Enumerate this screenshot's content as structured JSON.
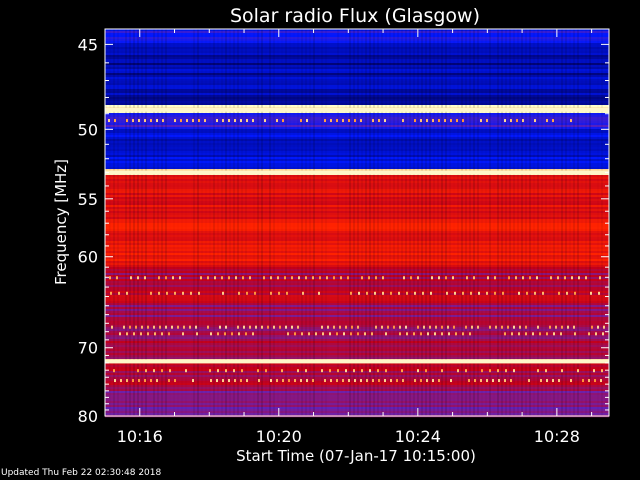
{
  "chart_data": {
    "type": "heatmap",
    "title": "Solar radio Flux (Glasgow)",
    "xlabel": "Start Time (07-Jan-17 10:15:00)",
    "ylabel": "Frequency [MHz]",
    "x_ticks": [
      "10:16",
      "10:20",
      "10:24",
      "10:28"
    ],
    "x_tick_minutes": [
      1,
      5,
      9,
      13
    ],
    "x_range_minutes": [
      0,
      14.5
    ],
    "y_ticks": [
      45,
      50,
      55,
      60,
      70,
      80
    ],
    "y_range": [
      44.2,
      80
    ],
    "y_scale": "reciprocal",
    "colormap": [
      "#000060",
      "#0018ff",
      "#6b22b0",
      "#c4001b",
      "#ff2200",
      "#ff9940",
      "#ffffcc"
    ],
    "bands": [
      {
        "from": 44.2,
        "to": 44.9,
        "level": 0.2
      },
      {
        "from": 44.9,
        "to": 48.5,
        "level": 0.08
      },
      {
        "from": 48.5,
        "to": 49.0,
        "level": 0.95
      },
      {
        "from": 49.0,
        "to": 50.0,
        "level": 0.25
      },
      {
        "from": 50.0,
        "to": 52.8,
        "level": 0.12
      },
      {
        "from": 52.8,
        "to": 53.2,
        "level": 0.93
      },
      {
        "from": 53.2,
        "to": 57.0,
        "level": 0.58
      },
      {
        "from": 57.0,
        "to": 61.0,
        "level": 0.62
      },
      {
        "from": 61.0,
        "to": 63.0,
        "level": 0.45
      },
      {
        "from": 63.0,
        "to": 65.0,
        "level": 0.52
      },
      {
        "from": 65.0,
        "to": 69.0,
        "level": 0.42
      },
      {
        "from": 69.0,
        "to": 71.6,
        "level": 0.45
      },
      {
        "from": 71.6,
        "to": 72.0,
        "level": 0.93
      },
      {
        "from": 72.0,
        "to": 76.0,
        "level": 0.46
      },
      {
        "from": 76.0,
        "to": 80.0,
        "level": 0.38
      }
    ]
  },
  "footer": "Updated Thu Feb 22 02:30:48 2018"
}
